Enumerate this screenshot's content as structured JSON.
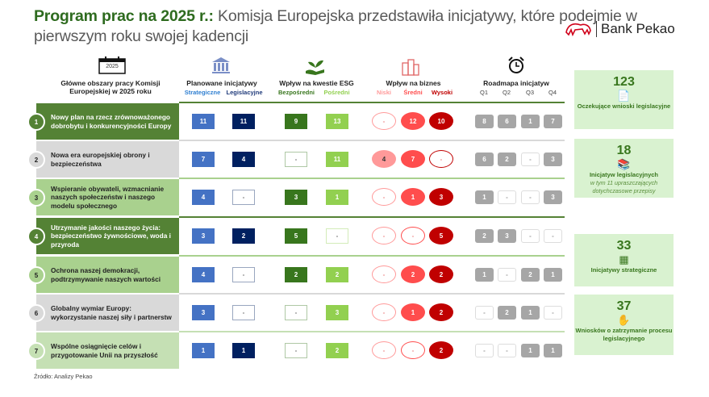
{
  "title": {
    "highlight": "Program prac na 2025 r.:",
    "rest": " Komisja Europejska przedstawiła inicjatywy, które podejmie w pierwszym roku swojej kadencji"
  },
  "logo": {
    "name": "Bank Pekao",
    "color": "#d0021b"
  },
  "headers": {
    "areas": {
      "icon": "calendar-icon",
      "year": "2025",
      "label": "Główne obszary pracy Komisji Europejskiej w 2025 roku"
    },
    "planned": {
      "icon": "institution-icon",
      "label": "Planowane inicjatywy",
      "sub": [
        "Strategiczne",
        "Legislacyjne"
      ]
    },
    "esg": {
      "icon": "plant-hand-icon",
      "label": "Wpływ na kwestie ESG",
      "sub": [
        "Bezpośredni",
        "Pośredni"
      ]
    },
    "business": {
      "icon": "buildings-icon",
      "label": "Wpływ na biznes",
      "sub": [
        "Niski",
        "Średni",
        "Wysoki"
      ]
    },
    "roadmap": {
      "icon": "alarm-clock-icon",
      "label": "Roadmapa inicjatyw",
      "sub": [
        "Q1",
        "Q2",
        "Q3",
        "Q4"
      ]
    }
  },
  "colors": {
    "strategic": "#4472c4",
    "legislative": "#002060",
    "esg_direct": "#38761d",
    "esg_indirect": "#92d050",
    "low": "#ff9999",
    "medium": "#ff4d4d",
    "high": "#c00000",
    "roadmap": "#a6a6a6"
  },
  "rows": [
    {
      "n": "1",
      "label": "Nowy plan na rzecz zrównoważonego dobrobytu i konkurencyjności Europy",
      "color": "#548235",
      "text": "#fff",
      "strategic": "11",
      "legislative": "11",
      "esg_direct": "9",
      "esg_indirect": "13",
      "low": "-",
      "medium": "12",
      "high": "10",
      "q": [
        "8",
        "6",
        "1",
        "7"
      ]
    },
    {
      "n": "2",
      "label": "Nowa era europejskiej obrony i bezpieczeństwa",
      "color": "#d9d9d9",
      "text": "#222",
      "strategic": "7",
      "legislative": "4",
      "esg_direct": "-",
      "esg_indirect": "11",
      "low": "4",
      "medium": "7",
      "high": "-",
      "q": [
        "6",
        "2",
        "-",
        "3"
      ]
    },
    {
      "n": "3",
      "label": "Wspieranie obywateli, wzmacnianie naszych społeczeństw i naszego modelu społecznego",
      "color": "#a9d18e",
      "text": "#222",
      "strategic": "4",
      "legislative": "-",
      "esg_direct": "3",
      "esg_indirect": "1",
      "low": "-",
      "medium": "1",
      "high": "3",
      "q": [
        "1",
        "-",
        "-",
        "3"
      ]
    },
    {
      "n": "4",
      "label": "Utrzymanie jakości naszego życia: bezpieczeństwo żywnościowe, woda i przyroda",
      "color": "#548235",
      "text": "#fff",
      "strategic": "3",
      "legislative": "2",
      "esg_direct": "5",
      "esg_indirect": "-",
      "low": "-",
      "medium": "-",
      "high": "5",
      "q": [
        "2",
        "3",
        "-",
        "-"
      ]
    },
    {
      "n": "5",
      "label": "Ochrona naszej demokracji, podtrzymywanie naszych wartości",
      "color": "#a9d18e",
      "text": "#222",
      "strategic": "4",
      "legislative": "-",
      "esg_direct": "2",
      "esg_indirect": "2",
      "low": "-",
      "medium": "2",
      "high": "2",
      "q": [
        "1",
        "-",
        "2",
        "1"
      ]
    },
    {
      "n": "6",
      "label": "Globalny wymiar Europy: wykorzystanie naszej siły i partnerstw",
      "color": "#d9d9d9",
      "text": "#222",
      "strategic": "3",
      "legislative": "-",
      "esg_direct": "-",
      "esg_indirect": "3",
      "low": "-",
      "medium": "1",
      "high": "2",
      "q": [
        "-",
        "2",
        "1",
        "-"
      ]
    },
    {
      "n": "7",
      "label": "Wspólne osiągnięcie celów i przygotowanie Unii na przyszłość",
      "color": "#c5e0b4",
      "text": "#222",
      "strategic": "1",
      "legislative": "1",
      "esg_direct": "-",
      "esg_indirect": "2",
      "low": "-",
      "medium": "-",
      "high": "2",
      "q": [
        "-",
        "-",
        "1",
        "1"
      ]
    }
  ],
  "panels": [
    {
      "num": "123",
      "icon": "document-icon",
      "label": "Oczekujące wnioski legislacyjne"
    },
    {
      "num": "18",
      "icon": "books-icon",
      "label": "Inicjatyw legislacyjnych",
      "note": "w tym 11 upraszczających dotychczasowe przepisy"
    },
    {
      "num": "33",
      "icon": "strategy-board-icon",
      "label": "Inicjatywy strategiczne"
    },
    {
      "num": "37",
      "icon": "stop-hand-icon",
      "label": "Wniosków o zatrzymanie procesu legislacyjnego"
    }
  ],
  "source": "Źródło: Analizy Pekao"
}
